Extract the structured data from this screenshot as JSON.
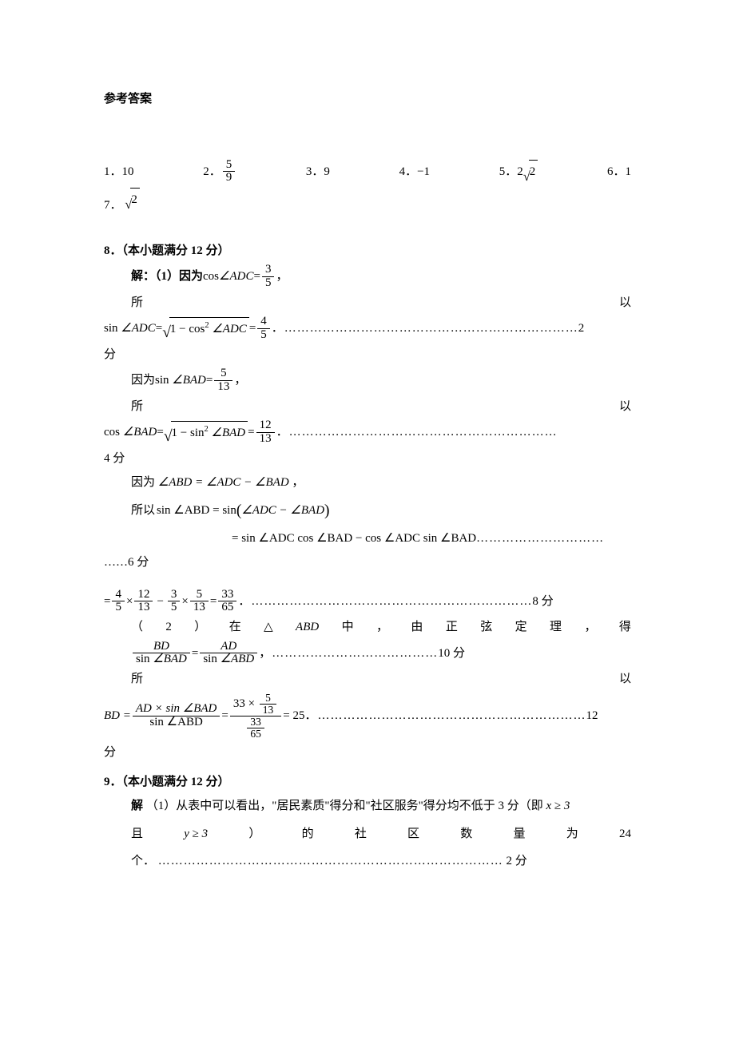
{
  "title": "参考答案",
  "answers": {
    "a1_label": "1．",
    "a1_val": "10",
    "a2_label": "2．",
    "a2_num": "5",
    "a2_den": "9",
    "a3_label": "3．",
    "a3_val": "9",
    "a4_label": "4．",
    "a4_val": "−1",
    "a5_label": "5．",
    "a5_coef": "2",
    "a5_rad": "2",
    "a6_label": "6．",
    "a6_val": "1",
    "a7_label": "7．",
    "a7_rad": "2"
  },
  "q8": {
    "heading": "8．（本小题满分 12 分）",
    "line1_pre": "解：（1）因为",
    "cos": "cos",
    "sin": "sin",
    "angADC": "∠ADC",
    "angBAD": "∠BAD",
    "angABD": "∠ABD",
    "eq": " = ",
    "f35n": "3",
    "f35d": "5",
    "comma": "，",
    "so_left": "所",
    "so_right": "以",
    "one_minus_cos2": "1 − cos",
    "sq": "2",
    "f45n": "4",
    "f45d": "5",
    "dots1": "．……………………………………………………………",
    "fen": "分",
    "pts2": "2",
    "because": "因为",
    "f513n": "5",
    "f513d": "13",
    "one_minus_sin2": "1 − sin",
    "f1213n": "12",
    "f1213d": "13",
    "dots2": "．………………………………………………………",
    "pts4": "4 分",
    "abd_eq": "∠ABD = ∠ADC − ∠BAD",
    "so_text": "所以",
    "sin_abd_eq": "sin ∠ABD = sin",
    "paren_inner": "∠ADC − ∠BAD",
    "expand": "= sin ∠ADC cos ∠BAD − cos ∠ADC sin ∠BAD",
    "dots3_tail": " …………………………",
    "dots3_head": "……",
    "pts6": "6 分",
    "calc_eq": "=",
    "t1n": "4",
    "t1d": "5",
    "times": "×",
    "t2n": "12",
    "t2d": "13",
    "minus": "−",
    "t3n": "3",
    "t3d": "5",
    "t4n": "5",
    "t4d": "13",
    "r_n": "33",
    "r_d": "65",
    "dots4": "．…………………………………………………………",
    "pts8": "8 分",
    "part2_words": [
      "（",
      "2",
      "）",
      "在",
      "△",
      "ABD",
      "中",
      "，",
      "由",
      "正",
      "弦",
      "定",
      "理",
      "，",
      "得"
    ],
    "BD": "BD",
    "AD": "AD",
    "dots5": "，…………………………………",
    "pts10": "10 分",
    "bd_eq_lhs": "BD = ",
    "ad_times_sin": "AD × sin ∠BAD",
    "sin_abd": "sin ∠ABD",
    "n33": "33",
    "n5_13_n": "5",
    "n5_13_d": "13",
    "n33_65_n": "33",
    "n33_65_d": "65",
    "res25": " = 25",
    "dots6": "．………………………………………………………",
    "pts12": "12"
  },
  "q9": {
    "heading": "9．（本小题满分 12 分）",
    "line1_pre": "解",
    "line1_body": "（1）从表中可以看出，\"居民素质\"得分和\"社区服务\"得分均不低于 3 分（即",
    "x_ge_3": "x ≥ 3",
    "row2_words": [
      "且",
      "y ≥ 3",
      "）",
      "的",
      "社",
      "区",
      "数",
      "量",
      "为",
      "24"
    ],
    "row3_pre": "个．",
    "dots": "………………………………………………………………………",
    "pts2": "2 分"
  }
}
